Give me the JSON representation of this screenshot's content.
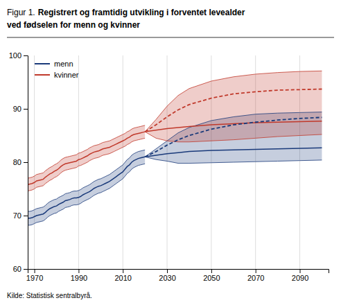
{
  "chart_data": {
    "type": "line",
    "title": [
      "Figur 1.",
      "Registrert og framtidig utvikling i forventet levealder",
      "ved fødselen for menn og kvinner"
    ],
    "source": "Kilde: Statistisk sentralbyrå.",
    "xlim": [
      1967,
      2103
    ],
    "ylim": [
      60,
      100
    ],
    "xticks": [
      1970,
      1990,
      2010,
      2030,
      2050,
      2070,
      2090
    ],
    "yticks": [
      60,
      70,
      80,
      90,
      100
    ],
    "grid": "x",
    "legend": "upper left",
    "series": [
      {
        "name": "menn",
        "color": "#1a3a7a",
        "x": [
          1967,
          1968,
          1969,
          1970,
          1971,
          1972,
          1973,
          1974,
          1975,
          1976,
          1977,
          1978,
          1979,
          1980,
          1981,
          1982,
          1983,
          1984,
          1985,
          1986,
          1987,
          1988,
          1989,
          1990,
          1991,
          1992,
          1993,
          1994,
          1995,
          1996,
          1997,
          1998,
          1999,
          2000,
          2001,
          2002,
          2003,
          2004,
          2005,
          2006,
          2007,
          2008,
          2009,
          2010,
          2011,
          2012,
          2013,
          2014,
          2015,
          2016,
          2017,
          2018,
          2019,
          2020
        ],
        "values": [
          69.5,
          69.5,
          69.6,
          69.8,
          70.0,
          70.1,
          70.2,
          70.3,
          70.6,
          71.0,
          71.3,
          71.5,
          71.7,
          71.8,
          72.1,
          72.3,
          72.5,
          72.8,
          72.9,
          73.0,
          73.2,
          73.3,
          73.3,
          73.4,
          73.6,
          73.9,
          74.1,
          74.3,
          74.5,
          74.8,
          75.1,
          75.3,
          75.5,
          75.6,
          75.8,
          76.0,
          76.2,
          76.4,
          76.7,
          77.0,
          77.3,
          77.6,
          77.9,
          78.2,
          78.7,
          79.2,
          79.5,
          80.0,
          80.3,
          80.5,
          80.7,
          80.8,
          80.9,
          81.0
        ],
        "upper": [
          70.8,
          70.8,
          70.9,
          71.1,
          71.3,
          71.4,
          71.5,
          71.6,
          71.9,
          72.3,
          72.6,
          72.8,
          73.0,
          73.1,
          73.4,
          73.6,
          73.8,
          74.1,
          74.2,
          74.3,
          74.5,
          74.6,
          74.6,
          74.7,
          74.9,
          75.2,
          75.4,
          75.6,
          75.8,
          76.1,
          76.4,
          76.6,
          76.8,
          76.9,
          77.1,
          77.3,
          77.5,
          77.7,
          78.0,
          78.3,
          78.6,
          78.9,
          79.2,
          79.5,
          80.0,
          80.5,
          80.8,
          81.3,
          81.6,
          81.8,
          82.0,
          82.1,
          82.2,
          82.3
        ],
        "lower": [
          68.2,
          68.2,
          68.3,
          68.5,
          68.7,
          68.8,
          68.9,
          69.0,
          69.3,
          69.7,
          70.0,
          70.2,
          70.4,
          70.5,
          70.8,
          71.0,
          71.2,
          71.5,
          71.6,
          71.7,
          71.9,
          72.0,
          72.0,
          72.1,
          72.3,
          72.6,
          72.8,
          73.0,
          73.2,
          73.5,
          73.8,
          74.0,
          74.2,
          74.3,
          74.5,
          74.7,
          74.9,
          75.1,
          75.4,
          75.7,
          76.0,
          76.3,
          76.6,
          76.9,
          77.4,
          77.9,
          78.2,
          78.7,
          79.0,
          79.2,
          79.4,
          79.5,
          79.6,
          79.7
        ]
      },
      {
        "name": "kvinner",
        "color": "#c0392b",
        "x": [
          1967,
          1968,
          1969,
          1970,
          1971,
          1972,
          1973,
          1974,
          1975,
          1976,
          1977,
          1978,
          1979,
          1980,
          1981,
          1982,
          1983,
          1984,
          1985,
          1986,
          1987,
          1988,
          1989,
          1990,
          1991,
          1992,
          1993,
          1994,
          1995,
          1996,
          1997,
          1998,
          1999,
          2000,
          2001,
          2002,
          2003,
          2004,
          2005,
          2006,
          2007,
          2008,
          2009,
          2010,
          2011,
          2012,
          2013,
          2014,
          2015,
          2016,
          2017,
          2018,
          2019,
          2020
        ],
        "values": [
          75.8,
          75.9,
          76.0,
          76.2,
          76.5,
          76.6,
          76.7,
          76.8,
          77.2,
          77.5,
          77.8,
          78.0,
          78.3,
          78.5,
          78.8,
          79.2,
          79.5,
          79.7,
          79.8,
          79.9,
          80.0,
          80.1,
          80.2,
          80.5,
          80.6,
          80.8,
          81.0,
          81.2,
          81.5,
          81.7,
          81.9,
          82.0,
          82.1,
          82.3,
          82.5,
          82.6,
          82.7,
          82.8,
          83.0,
          83.2,
          83.4,
          83.6,
          83.8,
          84.0,
          84.2,
          84.5,
          84.7,
          85.0,
          85.2,
          85.3,
          85.4,
          85.5,
          85.6,
          85.7
        ],
        "upper": [
          77.0,
          77.1,
          77.2,
          77.4,
          77.7,
          77.8,
          77.9,
          78.0,
          78.4,
          78.7,
          79.0,
          79.2,
          79.5,
          79.7,
          80.0,
          80.4,
          80.7,
          80.9,
          81.0,
          81.1,
          81.2,
          81.3,
          81.4,
          81.7,
          81.8,
          82.0,
          82.2,
          82.4,
          82.7,
          82.9,
          83.1,
          83.2,
          83.3,
          83.5,
          83.7,
          83.8,
          83.9,
          84.0,
          84.2,
          84.4,
          84.6,
          84.8,
          85.0,
          85.2,
          85.4,
          85.7,
          85.9,
          86.2,
          86.4,
          86.5,
          86.6,
          86.7,
          86.8,
          86.9
        ],
        "lower": [
          74.6,
          74.7,
          74.8,
          75.0,
          75.3,
          75.4,
          75.5,
          75.6,
          76.0,
          76.3,
          76.6,
          76.8,
          77.1,
          77.3,
          77.6,
          78.0,
          78.3,
          78.5,
          78.6,
          78.7,
          78.8,
          78.9,
          79.0,
          79.3,
          79.4,
          79.6,
          79.8,
          80.0,
          80.3,
          80.5,
          80.7,
          80.8,
          80.9,
          81.1,
          81.3,
          81.4,
          81.5,
          81.6,
          81.8,
          82.0,
          82.2,
          82.4,
          82.6,
          82.8,
          83.0,
          83.3,
          83.5,
          83.8,
          84.0,
          84.1,
          84.2,
          84.3,
          84.4,
          84.5
        ]
      },
      {
        "color": "#1a3a7a",
        "x": [
          2020,
          2025,
          2030,
          2035,
          2040,
          2050,
          2060,
          2070,
          2080,
          2090,
          2100
        ],
        "values": [
          81.0,
          81.3,
          81.6,
          81.8,
          82.0,
          82.2,
          82.3,
          82.4,
          82.5,
          82.6,
          82.7
        ],
        "upper": [
          81.0,
          82.5,
          84.0,
          85.5,
          86.5,
          87.8,
          88.5,
          89.0,
          89.2,
          89.3,
          89.4
        ],
        "lower": [
          81.0,
          80.5,
          80.2,
          79.8,
          79.8,
          79.9,
          80.0,
          80.1,
          80.2,
          80.3,
          80.4
        ]
      },
      {
        "color": "#c0392b",
        "x": [
          2020,
          2025,
          2030,
          2035,
          2040,
          2050,
          2060,
          2070,
          2080,
          2090,
          2100
        ],
        "values": [
          85.7,
          86.0,
          86.3,
          86.5,
          86.7,
          87.0,
          87.2,
          87.4,
          87.5,
          87.6,
          87.7
        ],
        "upper": [
          85.7,
          88.0,
          90.5,
          92.5,
          93.8,
          95.2,
          96.0,
          96.5,
          96.8,
          97.0,
          97.1
        ],
        "lower": [
          85.7,
          84.5,
          84.0,
          83.8,
          83.8,
          84.0,
          84.2,
          84.5,
          84.8,
          85.0,
          85.2
        ]
      },
      {
        "color": "#1a3a7a",
        "line_style": "dashed",
        "x": [
          2020,
          2025,
          2030,
          2035,
          2040,
          2050,
          2060,
          2070,
          2080,
          2090,
          2100
        ],
        "values": [
          81.0,
          82.0,
          83.2,
          84.2,
          85.0,
          86.2,
          87.0,
          87.5,
          87.9,
          88.2,
          88.4
        ]
      },
      {
        "color": "#c0392b",
        "line_style": "dashed",
        "x": [
          2020,
          2025,
          2030,
          2035,
          2040,
          2050,
          2060,
          2070,
          2080,
          2090,
          2100
        ],
        "values": [
          85.7,
          87.0,
          88.5,
          89.8,
          90.8,
          92.0,
          92.8,
          93.2,
          93.5,
          93.6,
          93.7
        ]
      }
    ]
  }
}
